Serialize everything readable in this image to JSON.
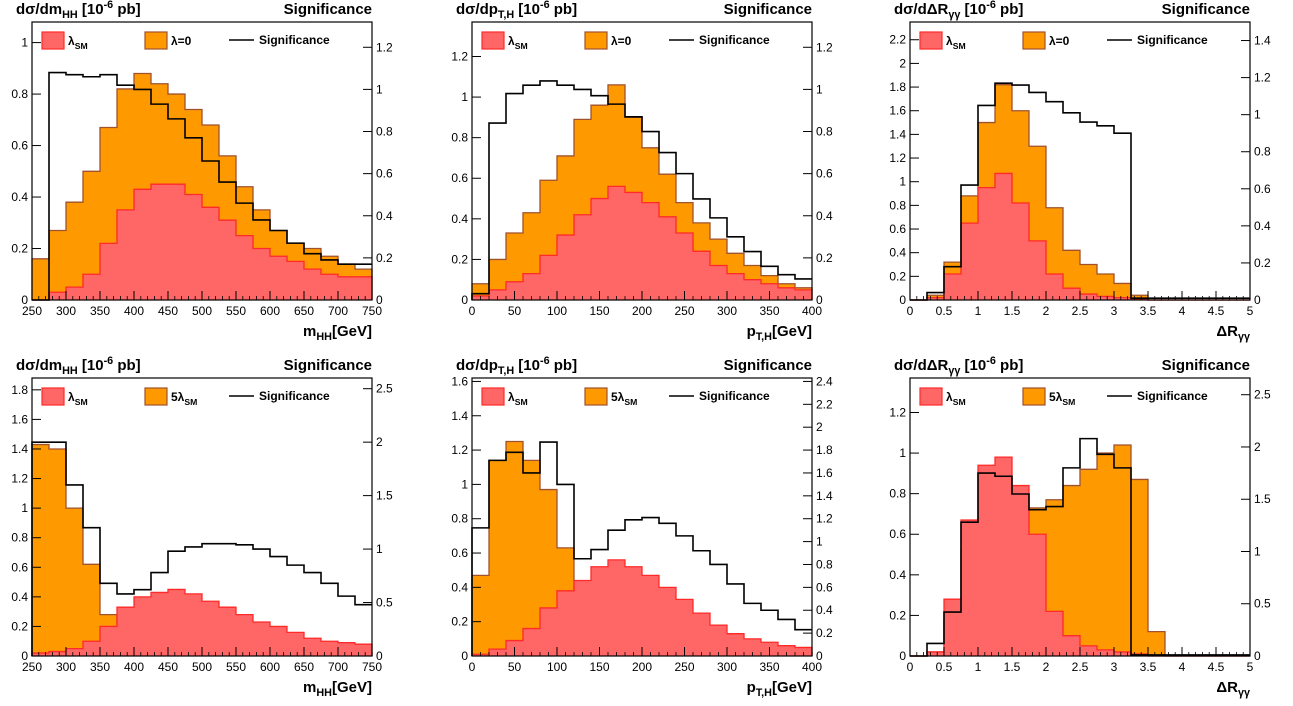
{
  "chart_data": [
    {
      "type": "histogram",
      "title_left": "dσ/dm_HH [10^-6 pb]",
      "title_right": "Significance",
      "xlabel": "m_HH[GeV]",
      "xlim": [
        250,
        750
      ],
      "ylim": [
        0,
        1.08
      ],
      "y2lim": [
        0,
        1.32
      ],
      "x_ticks": [
        250,
        300,
        350,
        400,
        450,
        500,
        550,
        600,
        650,
        700,
        750
      ],
      "y_ticks": [
        0,
        0.2,
        0.4,
        0.6,
        0.8,
        1
      ],
      "y2_ticks": [
        0,
        0.2,
        0.4,
        0.6,
        0.8,
        1,
        1.2
      ],
      "bin_edges": [
        250,
        275,
        300,
        325,
        350,
        375,
        400,
        425,
        450,
        475,
        500,
        525,
        550,
        575,
        600,
        625,
        650,
        675,
        700,
        725,
        750
      ],
      "series": [
        {
          "name": "λ=0",
          "color": "#ff9900",
          "values": [
            0.16,
            0.27,
            0.38,
            0.5,
            0.67,
            0.82,
            0.88,
            0.84,
            0.8,
            0.74,
            0.68,
            0.56,
            0.44,
            0.35,
            0.27,
            0.22,
            0.2,
            0.17,
            0.14,
            0.12
          ]
        },
        {
          "name": "λSM",
          "color": "#ff6666",
          "values": [
            0.0,
            0.03,
            0.05,
            0.1,
            0.22,
            0.35,
            0.43,
            0.45,
            0.45,
            0.41,
            0.36,
            0.31,
            0.25,
            0.2,
            0.17,
            0.15,
            0.12,
            0.1,
            0.09,
            0.09
          ]
        },
        {
          "name": "Significance",
          "color": "#000000",
          "values": [
            0.0,
            1.08,
            1.07,
            1.06,
            1.07,
            1.02,
            1.0,
            0.93,
            0.86,
            0.77,
            0.66,
            0.56,
            0.46,
            0.38,
            0.33,
            0.27,
            0.22,
            0.19,
            0.17,
            0.17
          ]
        }
      ],
      "legend": [
        "λSM",
        "λ=0",
        "Significance"
      ]
    },
    {
      "type": "histogram",
      "title_left": "dσ/dp_T,H [10^-6 pb]",
      "title_right": "Significance",
      "xlabel": "p_T,H[GeV]",
      "xlim": [
        0,
        400
      ],
      "ylim": [
        0,
        1.37
      ],
      "y2lim": [
        0,
        1.32
      ],
      "x_ticks": [
        0,
        50,
        100,
        150,
        200,
        250,
        300,
        350,
        400
      ],
      "y_ticks": [
        0,
        0.2,
        0.4,
        0.6,
        0.8,
        1,
        1.2
      ],
      "y2_ticks": [
        0,
        0.2,
        0.4,
        0.6,
        0.8,
        1,
        1.2
      ],
      "bin_edges": [
        0,
        20,
        40,
        60,
        80,
        100,
        120,
        140,
        160,
        180,
        200,
        220,
        240,
        260,
        280,
        300,
        320,
        340,
        360,
        380,
        400
      ],
      "series": [
        {
          "name": "λ=0",
          "color": "#ff9900",
          "values": [
            0.08,
            0.2,
            0.33,
            0.43,
            0.59,
            0.71,
            0.89,
            0.96,
            1.06,
            0.9,
            0.75,
            0.62,
            0.48,
            0.38,
            0.3,
            0.23,
            0.17,
            0.12,
            0.08,
            0.06
          ]
        },
        {
          "name": "λSM",
          "color": "#ff6666",
          "values": [
            0.02,
            0.05,
            0.09,
            0.13,
            0.22,
            0.32,
            0.42,
            0.5,
            0.56,
            0.53,
            0.48,
            0.41,
            0.33,
            0.24,
            0.17,
            0.13,
            0.1,
            0.08,
            0.06,
            0.05
          ]
        },
        {
          "name": "Significance",
          "color": "#000000",
          "values": [
            0.03,
            0.84,
            0.98,
            1.02,
            1.04,
            1.02,
            1.0,
            0.97,
            0.93,
            0.87,
            0.8,
            0.7,
            0.6,
            0.48,
            0.39,
            0.3,
            0.23,
            0.16,
            0.12,
            0.1
          ]
        }
      ],
      "legend": [
        "λSM",
        "λ=0",
        "Significance"
      ]
    },
    {
      "type": "histogram",
      "title_left": "dσ/dΔR_γγ [10^-6 pb]",
      "title_right": "Significance",
      "xlabel": "ΔR_γγ",
      "xlim": [
        0,
        5
      ],
      "ylim": [
        0,
        2.35
      ],
      "y2lim": [
        0,
        1.5
      ],
      "x_ticks": [
        0,
        0.5,
        1,
        1.5,
        2,
        2.5,
        3,
        3.5,
        4,
        4.5,
        5
      ],
      "y_ticks": [
        0,
        0.2,
        0.4,
        0.6,
        0.8,
        1,
        1.2,
        1.4,
        1.6,
        1.8,
        2,
        2.2
      ],
      "y2_ticks": [
        0,
        0.2,
        0.4,
        0.6,
        0.8,
        1,
        1.2,
        1.4
      ],
      "bin_edges": [
        0,
        0.25,
        0.5,
        0.75,
        1.0,
        1.25,
        1.5,
        1.75,
        2.0,
        2.25,
        2.5,
        2.75,
        3.0,
        3.25,
        3.5,
        3.75,
        4.0,
        4.25,
        4.5,
        4.75,
        5.0
      ],
      "series": [
        {
          "name": "λ=0",
          "color": "#ff9900",
          "values": [
            0.0,
            0.04,
            0.32,
            0.88,
            1.5,
            1.82,
            1.6,
            1.3,
            0.78,
            0.42,
            0.3,
            0.22,
            0.14,
            0.04,
            0.0,
            0.0,
            0.0,
            0.0,
            0.0,
            0.0
          ]
        },
        {
          "name": "λSM",
          "color": "#ff6666",
          "values": [
            0.0,
            0.02,
            0.22,
            0.65,
            0.95,
            1.07,
            0.82,
            0.5,
            0.22,
            0.1,
            0.05,
            0.03,
            0.02,
            0.01,
            0.0,
            0.0,
            0.0,
            0.0,
            0.0,
            0.0
          ]
        },
        {
          "name": "Significance",
          "color": "#000000",
          "values": [
            0.0,
            0.04,
            0.18,
            0.62,
            1.05,
            1.17,
            1.16,
            1.12,
            1.07,
            1.01,
            0.96,
            0.94,
            0.9,
            0.01,
            0.01,
            0.01,
            0.01,
            0.01,
            0.01,
            0.01
          ]
        }
      ],
      "legend": [
        "λSM",
        "λ=0",
        "Significance"
      ]
    },
    {
      "type": "histogram",
      "title_left": "dσ/dm_HH [10^-6 pb]",
      "title_right": "Significance",
      "xlabel": "m_HH[GeV]",
      "xlim": [
        250,
        750
      ],
      "ylim": [
        0,
        1.88
      ],
      "y2lim": [
        0,
        2.6
      ],
      "x_ticks": [
        250,
        300,
        350,
        400,
        450,
        500,
        550,
        600,
        650,
        700,
        750
      ],
      "y_ticks": [
        0,
        0.2,
        0.4,
        0.6,
        0.8,
        1,
        1.2,
        1.4,
        1.6,
        1.8
      ],
      "y2_ticks": [
        0,
        0.5,
        1,
        1.5,
        2,
        2.5
      ],
      "bin_edges": [
        250,
        275,
        300,
        325,
        350,
        375,
        400,
        425,
        450,
        475,
        500,
        525,
        550,
        575,
        600,
        625,
        650,
        675,
        700,
        725,
        750
      ],
      "series": [
        {
          "name": "5λSM",
          "color": "#ff9900",
          "values": [
            1.43,
            1.4,
            1.0,
            0.62,
            0.28,
            0.22,
            0.18,
            0.14,
            0.12,
            0.1,
            0.09,
            0.08,
            0.07,
            0.06,
            0.05,
            0.04,
            0.04,
            0.03,
            0.03,
            0.02
          ]
        },
        {
          "name": "λSM",
          "color": "#ff6666",
          "values": [
            0.02,
            0.03,
            0.05,
            0.1,
            0.2,
            0.33,
            0.4,
            0.43,
            0.45,
            0.42,
            0.37,
            0.33,
            0.28,
            0.23,
            0.2,
            0.16,
            0.12,
            0.1,
            0.09,
            0.08
          ]
        },
        {
          "name": "Significance",
          "color": "#000000",
          "values": [
            2.0,
            2.0,
            1.6,
            1.2,
            0.68,
            0.58,
            0.62,
            0.78,
            0.98,
            1.02,
            1.05,
            1.05,
            1.04,
            1.0,
            0.93,
            0.85,
            0.78,
            0.68,
            0.56,
            0.48
          ]
        }
      ],
      "legend": [
        "λSM",
        "5λSM",
        "Significance"
      ]
    },
    {
      "type": "histogram",
      "title_left": "dσ/dp_T,H [10^-6 pb]",
      "title_right": "Significance",
      "xlabel": "p_T,H[GeV]",
      "xlim": [
        0,
        400
      ],
      "ylim": [
        0,
        1.62
      ],
      "y2lim": [
        0,
        2.43
      ],
      "x_ticks": [
        0,
        50,
        100,
        150,
        200,
        250,
        300,
        350,
        400
      ],
      "y_ticks": [
        0,
        0.2,
        0.4,
        0.6,
        0.8,
        1,
        1.2,
        1.4,
        1.6
      ],
      "y2_ticks": [
        0,
        0.2,
        0.4,
        0.6,
        0.8,
        1,
        1.2,
        1.4,
        1.6,
        1.8,
        2,
        2.2,
        2.4
      ],
      "bin_edges": [
        0,
        20,
        40,
        60,
        80,
        100,
        120,
        140,
        160,
        180,
        200,
        220,
        240,
        260,
        280,
        300,
        320,
        340,
        360,
        380,
        400
      ],
      "series": [
        {
          "name": "5λSM",
          "color": "#ff9900",
          "values": [
            0.47,
            1.14,
            1.25,
            1.14,
            0.97,
            0.63,
            0.38,
            0.25,
            0.18,
            0.15,
            0.12,
            0.1,
            0.08,
            0.07,
            0.06,
            0.05,
            0.04,
            0.03,
            0.02,
            0.02
          ]
        },
        {
          "name": "λSM",
          "color": "#ff6666",
          "values": [
            0.01,
            0.04,
            0.09,
            0.16,
            0.28,
            0.38,
            0.44,
            0.52,
            0.56,
            0.52,
            0.47,
            0.4,
            0.33,
            0.25,
            0.18,
            0.13,
            0.1,
            0.08,
            0.06,
            0.05
          ]
        },
        {
          "name": "Significance",
          "color": "#000000",
          "values": [
            1.12,
            1.71,
            1.78,
            1.6,
            1.87,
            1.5,
            0.85,
            0.93,
            1.1,
            1.19,
            1.21,
            1.16,
            1.05,
            0.92,
            0.8,
            0.63,
            0.46,
            0.4,
            0.32,
            0.23
          ]
        }
      ],
      "legend": [
        "λSM",
        "5λSM",
        "Significance"
      ]
    },
    {
      "type": "histogram",
      "title_left": "dσ/dΔR_γγ [10^-6 pb]",
      "title_right": "Significance",
      "xlabel": "ΔR_γγ",
      "xlim": [
        0,
        5
      ],
      "ylim": [
        0,
        1.37
      ],
      "y2lim": [
        0,
        2.66
      ],
      "x_ticks": [
        0,
        0.5,
        1,
        1.5,
        2,
        2.5,
        3,
        3.5,
        4,
        4.5,
        5
      ],
      "y_ticks": [
        0,
        0.2,
        0.4,
        0.6,
        0.8,
        1,
        1.2
      ],
      "y2_ticks": [
        0,
        0.5,
        1,
        1.5,
        2,
        2.5
      ],
      "bin_edges": [
        0,
        0.25,
        0.5,
        0.75,
        1.0,
        1.25,
        1.5,
        1.75,
        2.0,
        2.25,
        2.5,
        2.75,
        3.0,
        3.25,
        3.5,
        3.75,
        4.0,
        4.25,
        4.5,
        4.75,
        5.0
      ],
      "series": [
        {
          "name": "5λSM",
          "color": "#ff9900",
          "values": [
            0.0,
            0.02,
            0.18,
            0.52,
            0.67,
            0.7,
            0.73,
            0.73,
            0.77,
            0.84,
            0.92,
            1.0,
            1.04,
            0.87,
            0.12,
            0.0,
            0.0,
            0.0,
            0.0,
            0.0
          ]
        },
        {
          "name": "λSM",
          "color": "#ff6666",
          "values": [
            0.0,
            0.02,
            0.28,
            0.67,
            0.94,
            0.98,
            0.84,
            0.6,
            0.22,
            0.1,
            0.05,
            0.03,
            0.02,
            0.01,
            0.0,
            0.0,
            0.0,
            0.0,
            0.0,
            0.0
          ]
        },
        {
          "name": "Significance",
          "color": "#000000",
          "values": [
            0.0,
            0.12,
            0.42,
            1.28,
            1.75,
            1.72,
            1.55,
            1.4,
            1.43,
            1.8,
            2.08,
            1.93,
            1.8,
            0.01,
            0.01,
            0.01,
            0.01,
            0.01,
            0.01,
            0.01
          ]
        }
      ],
      "legend": [
        "λSM",
        "5λSM",
        "Significance"
      ]
    }
  ]
}
